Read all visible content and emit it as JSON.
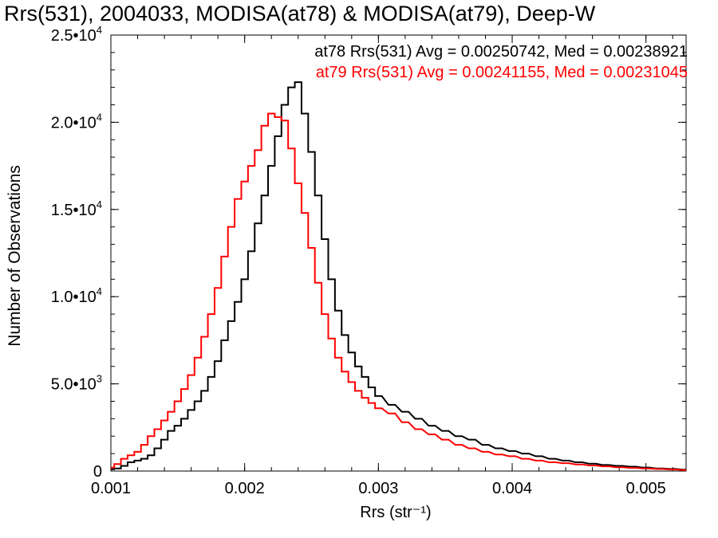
{
  "chart_data": {
    "type": "line",
    "title": "Rrs(531), 2004033, MODISA(at78) & MODISA(at79), Deep-W",
    "xlabel": "Rrs (str⁻¹)",
    "ylabel": "Number of Observations",
    "xlim": [
      0.001,
      0.0053
    ],
    "ylim": [
      0,
      25000
    ],
    "x_ticks": [
      0.001,
      0.002,
      0.003,
      0.004,
      0.005
    ],
    "x_tick_labels": [
      "0.001",
      "0.002",
      "0.003",
      "0.004",
      "0.005"
    ],
    "y_ticks": [
      0,
      5000,
      10000,
      15000,
      20000,
      25000
    ],
    "y_tick_labels": [
      {
        "mantissa": "0",
        "exponent": ""
      },
      {
        "mantissa": "5.0•10",
        "exponent": "3"
      },
      {
        "mantissa": "1.0•10",
        "exponent": "4"
      },
      {
        "mantissa": "1.5•10",
        "exponent": "4"
      },
      {
        "mantissa": "2.0•10",
        "exponent": "4"
      },
      {
        "mantissa": "2.5•10",
        "exponent": "4"
      }
    ],
    "legend_placement": "top-right",
    "annotations": [
      {
        "text": "at78 Rrs(531) Avg = 0.00250742, Med = 0.00238921",
        "color": "#000000"
      },
      {
        "text": "at79 Rrs(531) Avg = 0.00241155, Med = 0.00231045",
        "color": "#ff0000"
      }
    ],
    "series": [
      {
        "name": "at78",
        "color": "#000000",
        "x": [
          0.001,
          0.00105,
          0.0011,
          0.00115,
          0.0012,
          0.00125,
          0.0013,
          0.00135,
          0.0014,
          0.00145,
          0.0015,
          0.00155,
          0.0016,
          0.00165,
          0.0017,
          0.00175,
          0.0018,
          0.00185,
          0.0019,
          0.00195,
          0.002,
          0.00205,
          0.0021,
          0.00215,
          0.0022,
          0.00225,
          0.0023,
          0.00235,
          0.0024,
          0.00245,
          0.0025,
          0.00255,
          0.0026,
          0.00265,
          0.0027,
          0.00275,
          0.0028,
          0.00285,
          0.0029,
          0.00295,
          0.003,
          0.0031,
          0.0032,
          0.0033,
          0.0034,
          0.0035,
          0.0036,
          0.0037,
          0.0038,
          0.0039,
          0.004,
          0.0041,
          0.0042,
          0.0043,
          0.0044,
          0.0045,
          0.0046,
          0.0047,
          0.0048,
          0.0049,
          0.005,
          0.0051,
          0.0052,
          0.0053
        ],
        "y": [
          100,
          150,
          300,
          500,
          600,
          700,
          900,
          1300,
          1800,
          2300,
          2600,
          3000,
          3500,
          4000,
          4600,
          5400,
          6300,
          7500,
          8600,
          9700,
          11000,
          12600,
          14200,
          15800,
          17500,
          19200,
          21000,
          22000,
          22300,
          20500,
          18300,
          15800,
          13300,
          11000,
          9200,
          7800,
          6800,
          6000,
          5400,
          4800,
          4300,
          3800,
          3400,
          3000,
          2600,
          2300,
          2000,
          1800,
          1500,
          1300,
          1150,
          1000,
          850,
          700,
          600,
          500,
          420,
          350,
          300,
          250,
          200,
          150,
          120,
          80
        ]
      },
      {
        "name": "at79",
        "color": "#ff0000",
        "x": [
          0.001,
          0.00105,
          0.0011,
          0.00115,
          0.0012,
          0.00125,
          0.0013,
          0.00135,
          0.0014,
          0.00145,
          0.0015,
          0.00155,
          0.0016,
          0.00165,
          0.0017,
          0.00175,
          0.0018,
          0.00185,
          0.0019,
          0.00195,
          0.002,
          0.00205,
          0.0021,
          0.00215,
          0.0022,
          0.00225,
          0.0023,
          0.00235,
          0.0024,
          0.00245,
          0.0025,
          0.00255,
          0.0026,
          0.00265,
          0.0027,
          0.00275,
          0.0028,
          0.00285,
          0.0029,
          0.00295,
          0.003,
          0.0031,
          0.0032,
          0.0033,
          0.0034,
          0.0035,
          0.0036,
          0.0037,
          0.0038,
          0.0039,
          0.004,
          0.0041,
          0.0042,
          0.0043,
          0.0044,
          0.0045,
          0.0046,
          0.0047,
          0.0048,
          0.0049,
          0.005,
          0.0051,
          0.0052,
          0.0053
        ],
        "y": [
          200,
          400,
          700,
          900,
          1100,
          1500,
          2000,
          2400,
          2900,
          3400,
          4000,
          4700,
          5500,
          6500,
          7700,
          9000,
          10500,
          12300,
          14000,
          15600,
          16600,
          17500,
          18400,
          19800,
          20500,
          20300,
          20100,
          18500,
          16500,
          14800,
          12800,
          10800,
          9000,
          7600,
          6500,
          5700,
          5100,
          4600,
          4200,
          3900,
          3600,
          3300,
          2800,
          2400,
          2100,
          1800,
          1500,
          1300,
          1100,
          950,
          850,
          700,
          600,
          500,
          450,
          380,
          320,
          270,
          220,
          180,
          150,
          120,
          90,
          60
        ]
      }
    ]
  }
}
